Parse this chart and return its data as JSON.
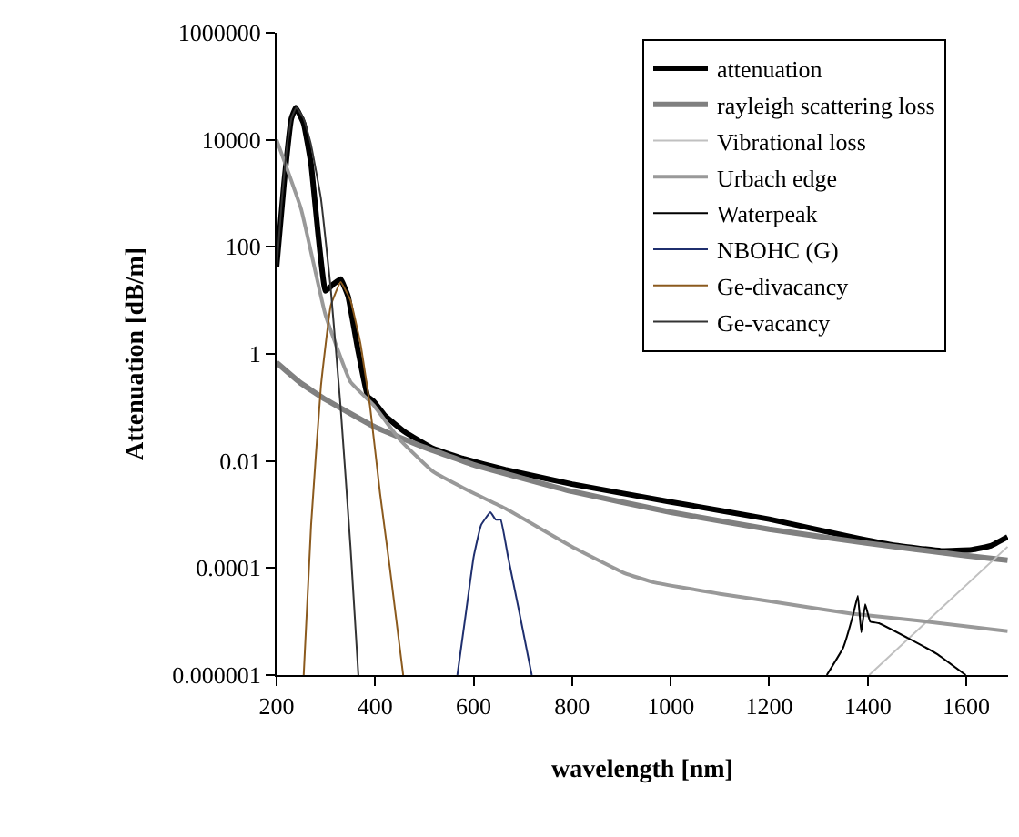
{
  "chart_data": {
    "type": "line",
    "xlabel": "wavelength [nm]",
    "ylabel": "Attenuation [dB/m]",
    "log": "y",
    "xlim": [
      200,
      1685
    ],
    "xticks": [
      200,
      400,
      600,
      800,
      1000,
      1200,
      1400,
      1600
    ],
    "ylim": [
      1e-06,
      1000000
    ],
    "yticks": [
      1000000,
      10000,
      100,
      1,
      0.01,
      0.0001,
      {
        "value": 1e-06,
        "label": "0.000001"
      }
    ],
    "grid": false,
    "legend": "top right",
    "marker": "none",
    "line_style": "solid",
    "series": [
      {
        "name": "attenuation",
        "color": "#000000",
        "x": [
          200,
          215,
          230,
          239,
          255,
          270,
          285,
          299,
          315,
          330,
          345,
          365,
          385,
          397,
          420,
          460,
          518,
          580,
          664,
          800,
          1003,
          1200,
          1367,
          1450,
          1549,
          1611,
          1650,
          1684
        ],
        "values": [
          42,
          1500,
          25000,
          40000,
          20000,
          3500,
          150,
          15,
          20,
          25,
          12,
          1.2,
          0.16,
          0.13,
          0.07,
          0.035,
          0.017,
          0.011,
          0.0069,
          0.0037,
          0.0017,
          0.00082,
          0.00038,
          0.00027,
          0.00021,
          0.00022,
          0.00026,
          0.00038
        ]
      },
      {
        "name": "rayleigh scattering loss",
        "color": "#808080",
        "x": [
          200,
          250,
          300,
          400,
          500,
          600,
          800,
          1000,
          1200,
          1400,
          1600,
          1684
        ],
        "values": [
          0.69,
          0.28,
          0.14,
          0.043,
          0.018,
          0.0085,
          0.0027,
          0.0011,
          0.00053,
          0.00029,
          0.00017,
          0.00014
        ]
      },
      {
        "name": "Vibrational loss",
        "color": "#c0c0c0",
        "x": [
          1403,
          1684
        ],
        "values": [
          1e-06,
          0.00025
        ]
      },
      {
        "name": "Urbach edge",
        "color": "#999999",
        "x": [
          200,
          250,
          299,
          350,
          397,
          450,
          518,
          600,
          664,
          800,
          907,
          966,
          1100,
          1200,
          1367,
          1500,
          1684
        ],
        "values": [
          10000,
          500,
          5.4,
          0.3,
          0.11,
          0.025,
          0.0063,
          0.0025,
          0.0013,
          0.00025,
          8e-05,
          5.4e-05,
          3.3e-05,
          2.4e-05,
          1.4e-05,
          1.05e-05,
          6.6e-06
        ]
      },
      {
        "name": "Waterpeak",
        "color": "#000000",
        "x": [
          1317,
          1350,
          1370,
          1380,
          1387,
          1395,
          1405,
          1423,
          1480,
          1540,
          1599
        ],
        "values": [
          1e-06,
          3.2e-06,
          1.3e-05,
          3e-05,
          6.3e-06,
          2.1e-05,
          1e-05,
          9.3e-06,
          5e-06,
          2.5e-06,
          1e-06
        ]
      },
      {
        "name": "NBOHC (G)",
        "color": "#1f2f6e",
        "x": [
          567,
          585,
          600,
          615,
          634,
          645,
          655,
          670,
          690,
          718
        ],
        "values": [
          1e-06,
          1.6e-05,
          0.00016,
          0.00063,
          0.0011,
          0.0008,
          0.0008,
          0.00016,
          2e-05,
          1e-06
        ]
      },
      {
        "name": "Ge-divacancy",
        "color": "#8b5a1e",
        "x": [
          255,
          270,
          290,
          310,
          330,
          350,
          370,
          390,
          410,
          430,
          457
        ],
        "values": [
          1e-06,
          0.00063,
          0.25,
          8,
          22,
          10,
          1.6,
          0.1,
          0.0025,
          0.0001,
          1e-06
        ]
      },
      {
        "name": "Ge-vacancy",
        "color": "#333333",
        "x": [
          200,
          210,
          220,
          230,
          240,
          255,
          270,
          290,
          310,
          330,
          350,
          366
        ],
        "values": [
          40,
          630,
          6300,
          25000,
          40000,
          25000,
          8000,
          800,
          16,
          0.1,
          0.00025,
          1e-06
        ]
      }
    ]
  }
}
